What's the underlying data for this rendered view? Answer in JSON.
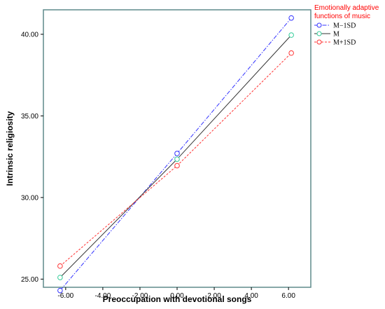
{
  "chart_data": {
    "type": "line",
    "title": "",
    "xlabel": "Preoccupation with devotional songs",
    "ylabel": "Intrinsic religiosity",
    "xlim": [
      -7.2,
      7.2
    ],
    "ylim": [
      24.5,
      41.5
    ],
    "x_ticks": [
      -6,
      -4,
      -2,
      0,
      2,
      4,
      6
    ],
    "x_tick_labels": [
      "-6.00",
      "-4.00",
      "-2.00",
      "0.00",
      "2.00",
      "4.00",
      "6.00"
    ],
    "y_ticks": [
      25,
      30,
      35,
      40
    ],
    "y_tick_labels": [
      "25.00",
      "30.00",
      "35.00",
      "40.00"
    ],
    "grid": false,
    "legend": {
      "title": "Emotionally adaptive functions of music",
      "title_lines": [
        "Emotionally adaptive",
        "functions of music"
      ],
      "placement": "top-right outside"
    },
    "series": [
      {
        "name": "M−1SD",
        "color": "#3333ff",
        "dash": "dashdot",
        "x": [
          -6.3,
          0.0,
          6.15
        ],
        "y": [
          24.3,
          32.7,
          41.0
        ]
      },
      {
        "name": "M",
        "color": "#33cc99",
        "line_color": "#333333",
        "dash": "solid",
        "x": [
          -6.3,
          0.0,
          6.15
        ],
        "y": [
          25.1,
          32.35,
          39.95
        ]
      },
      {
        "name": "M+1SD",
        "color": "#ff3333",
        "dash": "dashed",
        "x": [
          -6.3,
          0.0,
          6.15
        ],
        "y": [
          25.8,
          31.95,
          38.85
        ]
      }
    ]
  }
}
